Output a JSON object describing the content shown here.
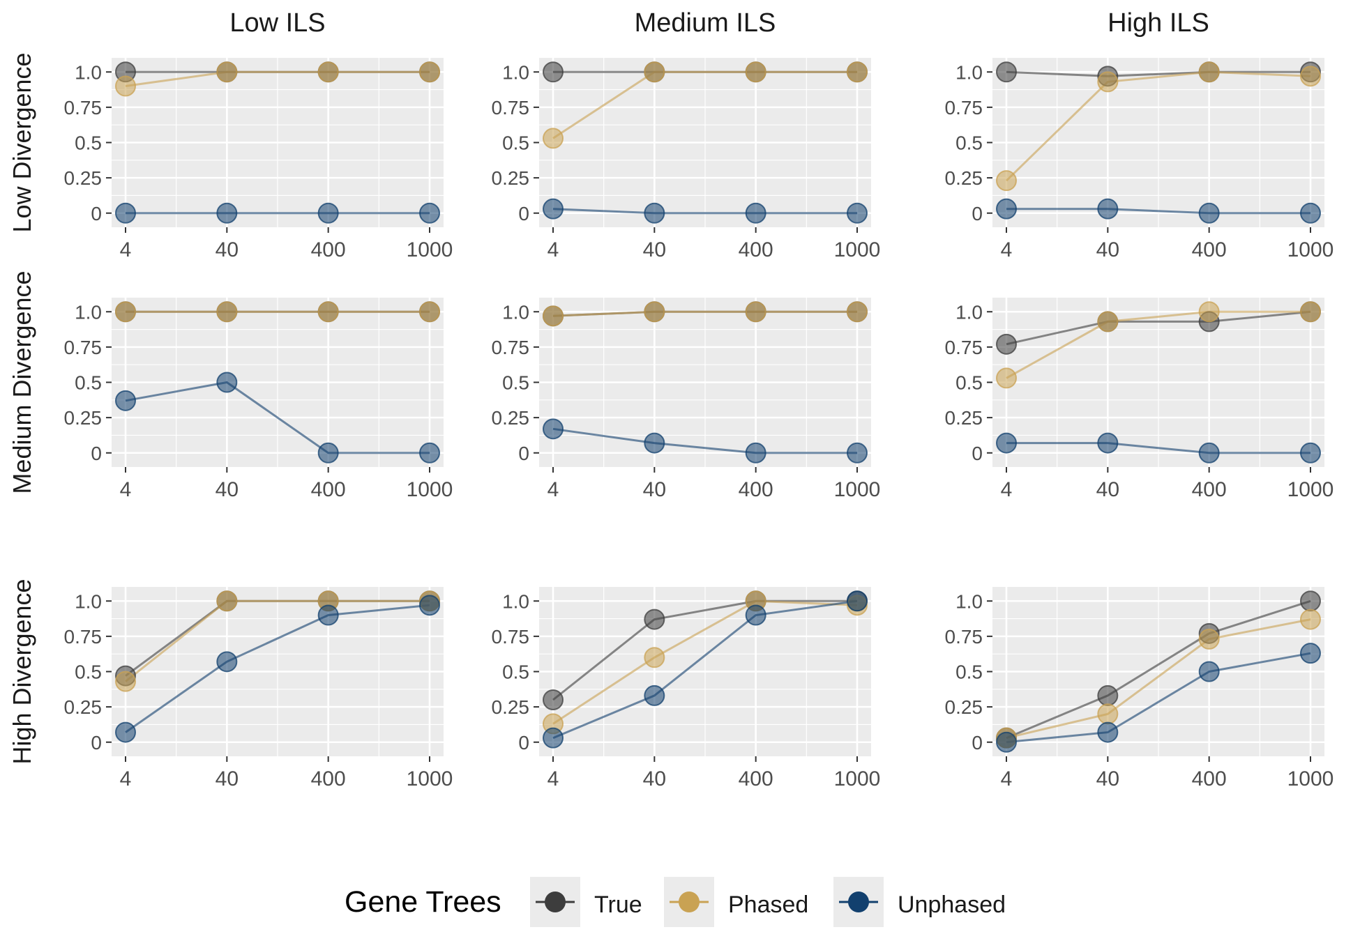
{
  "chart_data": {
    "type": "line",
    "facet_columns": [
      "Low ILS",
      "Medium ILS",
      "High ILS"
    ],
    "facet_rows": [
      "Low Divergence",
      "Medium Divergence",
      "High Divergence"
    ],
    "x": [
      4,
      40,
      400,
      1000
    ],
    "x_tick_labels": [
      "4",
      "40",
      "400",
      "1000"
    ],
    "y_ticks": [
      0,
      0.25,
      0.5,
      0.75,
      1.0
    ],
    "y_tick_labels": [
      "0",
      "0.25",
      "0.5",
      "0.75",
      "1.0"
    ],
    "ylim": [
      -0.1,
      1.1
    ],
    "x_scale": "categorical",
    "grid": true,
    "legend": {
      "title": "Gene Trees",
      "placement": "bottom",
      "entries": [
        "True",
        "Phased",
        "Unphased"
      ]
    },
    "series_styles": [
      {
        "name": "True",
        "color": "#3d3d3d"
      },
      {
        "name": "Phased",
        "color": "#c9a253"
      },
      {
        "name": "Unphased",
        "color": "#12406e"
      }
    ],
    "panels": [
      {
        "row": "Low Divergence",
        "col": "Low ILS",
        "series": [
          {
            "name": "True",
            "values": [
              1.0,
              1.0,
              1.0,
              1.0
            ]
          },
          {
            "name": "Phased",
            "values": [
              0.9,
              1.0,
              1.0,
              1.0
            ]
          },
          {
            "name": "Unphased",
            "values": [
              0,
              0,
              0,
              0
            ]
          }
        ]
      },
      {
        "row": "Low Divergence",
        "col": "Medium ILS",
        "series": [
          {
            "name": "True",
            "values": [
              1.0,
              1.0,
              1.0,
              1.0
            ]
          },
          {
            "name": "Phased",
            "values": [
              0.53,
              1.0,
              1.0,
              1.0
            ]
          },
          {
            "name": "Unphased",
            "values": [
              0.03,
              0,
              0,
              0
            ]
          }
        ]
      },
      {
        "row": "Low Divergence",
        "col": "High ILS",
        "series": [
          {
            "name": "True",
            "values": [
              1.0,
              0.97,
              1.0,
              1.0
            ]
          },
          {
            "name": "Phased",
            "values": [
              0.23,
              0.93,
              1.0,
              0.97
            ]
          },
          {
            "name": "Unphased",
            "values": [
              0.03,
              0.03,
              0,
              0
            ]
          }
        ]
      },
      {
        "row": "Medium Divergence",
        "col": "Low ILS",
        "series": [
          {
            "name": "True",
            "values": [
              1.0,
              1.0,
              1.0,
              1.0
            ]
          },
          {
            "name": "Phased",
            "values": [
              1.0,
              1.0,
              1.0,
              1.0
            ]
          },
          {
            "name": "Unphased",
            "values": [
              0.37,
              0.5,
              0,
              0
            ]
          }
        ]
      },
      {
        "row": "Medium Divergence",
        "col": "Medium ILS",
        "series": [
          {
            "name": "True",
            "values": [
              0.97,
              1.0,
              1.0,
              1.0
            ]
          },
          {
            "name": "Phased",
            "values": [
              0.97,
              1.0,
              1.0,
              1.0
            ]
          },
          {
            "name": "Unphased",
            "values": [
              0.17,
              0.07,
              0,
              0
            ]
          }
        ]
      },
      {
        "row": "Medium Divergence",
        "col": "High ILS",
        "series": [
          {
            "name": "True",
            "values": [
              0.77,
              0.93,
              0.93,
              1.0
            ]
          },
          {
            "name": "Phased",
            "values": [
              0.53,
              0.93,
              1.0,
              1.0
            ]
          },
          {
            "name": "Unphased",
            "values": [
              0.07,
              0.07,
              0,
              0
            ]
          }
        ]
      },
      {
        "row": "High Divergence",
        "col": "Low ILS",
        "series": [
          {
            "name": "True",
            "values": [
              0.47,
              1.0,
              1.0,
              1.0
            ]
          },
          {
            "name": "Phased",
            "values": [
              0.43,
              1.0,
              1.0,
              1.0
            ]
          },
          {
            "name": "Unphased",
            "values": [
              0.07,
              0.57,
              0.9,
              0.97
            ]
          }
        ]
      },
      {
        "row": "High Divergence",
        "col": "Medium ILS",
        "series": [
          {
            "name": "True",
            "values": [
              0.3,
              0.87,
              1.0,
              1.0
            ]
          },
          {
            "name": "Phased",
            "values": [
              0.13,
              0.6,
              1.0,
              0.97
            ]
          },
          {
            "name": "Unphased",
            "values": [
              0.03,
              0.33,
              0.9,
              1.0
            ]
          }
        ]
      },
      {
        "row": "High Divergence",
        "col": "High ILS",
        "series": [
          {
            "name": "True",
            "values": [
              0.03,
              0.33,
              0.77,
              1.0
            ]
          },
          {
            "name": "Phased",
            "values": [
              0.03,
              0.2,
              0.73,
              0.87
            ]
          },
          {
            "name": "Unphased",
            "values": [
              0,
              0.07,
              0.5,
              0.63
            ]
          }
        ]
      }
    ]
  }
}
